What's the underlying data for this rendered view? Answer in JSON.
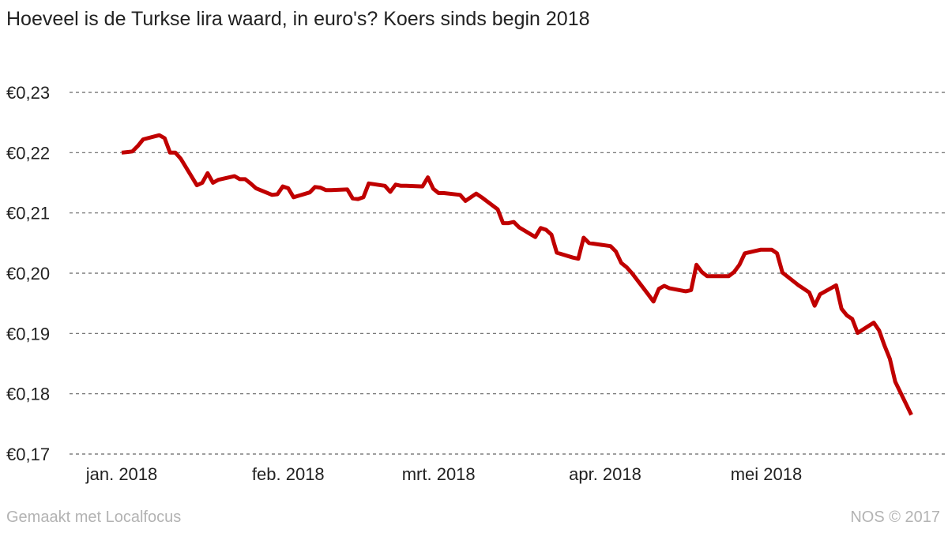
{
  "title": "Hoeveel is de Turkse lira waard, in euro's? Koers sinds begin 2018",
  "footer": {
    "left": "Gemaakt met Localfocus",
    "right": "NOS © 2017"
  },
  "chart_data": {
    "type": "line",
    "title": "Hoeveel is de Turkse lira waard, in euro's? Koers sinds begin 2018",
    "xlabel": "",
    "ylabel": "",
    "ylim": [
      0.17,
      0.23
    ],
    "xlim": [
      "2017-12-28",
      "2018-05-31"
    ],
    "grid": true,
    "line_color": "#c00000",
    "y_ticks": [
      {
        "value": 0.23,
        "label": "€0,23"
      },
      {
        "value": 0.22,
        "label": "€0,22"
      },
      {
        "value": 0.21,
        "label": "€0,21"
      },
      {
        "value": 0.2,
        "label": "€0,20"
      },
      {
        "value": 0.19,
        "label": "€0,19"
      },
      {
        "value": 0.18,
        "label": "€0,18"
      },
      {
        "value": 0.17,
        "label": "€0,17"
      }
    ],
    "x_ticks": [
      {
        "date": "2018-01-01",
        "label": "jan. 2018"
      },
      {
        "date": "2018-02-01",
        "label": "feb. 2018"
      },
      {
        "date": "2018-03-01",
        "label": "mrt. 2018"
      },
      {
        "date": "2018-04-01",
        "label": "apr. 2018"
      },
      {
        "date": "2018-05-01",
        "label": "mei 2018"
      }
    ],
    "series": [
      {
        "points": [
          [
            "2018-01-01",
            0.22
          ],
          [
            "2018-01-02",
            0.2201
          ],
          [
            "2018-01-03",
            0.2202
          ],
          [
            "2018-01-04",
            0.2211
          ],
          [
            "2018-01-05",
            0.2222
          ],
          [
            "2018-01-08",
            0.2229
          ],
          [
            "2018-01-09",
            0.2224
          ],
          [
            "2018-01-10",
            0.22
          ],
          [
            "2018-01-11",
            0.22
          ],
          [
            "2018-01-12",
            0.219
          ],
          [
            "2018-01-15",
            0.2146
          ],
          [
            "2018-01-16",
            0.215
          ],
          [
            "2018-01-17",
            0.2166
          ],
          [
            "2018-01-18",
            0.215
          ],
          [
            "2018-01-19",
            0.2155
          ],
          [
            "2018-01-22",
            0.2161
          ],
          [
            "2018-01-23",
            0.2156
          ],
          [
            "2018-01-24",
            0.2156
          ],
          [
            "2018-01-25",
            0.2149
          ],
          [
            "2018-01-26",
            0.2141
          ],
          [
            "2018-01-29",
            0.213
          ],
          [
            "2018-01-30",
            0.2131
          ],
          [
            "2018-01-31",
            0.2144
          ],
          [
            "2018-02-01",
            0.2141
          ],
          [
            "2018-02-02",
            0.2126
          ],
          [
            "2018-02-05",
            0.2134
          ],
          [
            "2018-02-06",
            0.2143
          ],
          [
            "2018-02-07",
            0.2142
          ],
          [
            "2018-02-08",
            0.2138
          ],
          [
            "2018-02-09",
            0.2138
          ],
          [
            "2018-02-12",
            0.2139
          ],
          [
            "2018-02-13",
            0.2124
          ],
          [
            "2018-02-14",
            0.2123
          ],
          [
            "2018-02-15",
            0.2126
          ],
          [
            "2018-02-16",
            0.2149
          ],
          [
            "2018-02-19",
            0.2145
          ],
          [
            "2018-02-20",
            0.2135
          ],
          [
            "2018-02-21",
            0.2147
          ],
          [
            "2018-02-22",
            0.2145
          ],
          [
            "2018-02-23",
            0.2145
          ],
          [
            "2018-02-26",
            0.2144
          ],
          [
            "2018-02-27",
            0.2159
          ],
          [
            "2018-02-28",
            0.214
          ],
          [
            "2018-03-01",
            0.2133
          ],
          [
            "2018-03-02",
            0.2133
          ],
          [
            "2018-03-05",
            0.213
          ],
          [
            "2018-03-06",
            0.212
          ],
          [
            "2018-03-07",
            0.2126
          ],
          [
            "2018-03-08",
            0.2132
          ],
          [
            "2018-03-09",
            0.2126
          ],
          [
            "2018-03-12",
            0.2106
          ],
          [
            "2018-03-13",
            0.2083
          ],
          [
            "2018-03-14",
            0.2083
          ],
          [
            "2018-03-15",
            0.2085
          ],
          [
            "2018-03-16",
            0.2076
          ],
          [
            "2018-03-19",
            0.206
          ],
          [
            "2018-03-20",
            0.2075
          ],
          [
            "2018-03-21",
            0.2072
          ],
          [
            "2018-03-22",
            0.2064
          ],
          [
            "2018-03-23",
            0.2034
          ],
          [
            "2018-03-26",
            0.2026
          ],
          [
            "2018-03-27",
            0.2024
          ],
          [
            "2018-03-28",
            0.2059
          ],
          [
            "2018-03-29",
            0.205
          ],
          [
            "2018-04-02",
            0.2045
          ],
          [
            "2018-04-03",
            0.2036
          ],
          [
            "2018-04-04",
            0.2017
          ],
          [
            "2018-04-05",
            0.201
          ],
          [
            "2018-04-06",
            0.2
          ],
          [
            "2018-04-09",
            0.1965
          ],
          [
            "2018-04-10",
            0.1953
          ],
          [
            "2018-04-11",
            0.1974
          ],
          [
            "2018-04-12",
            0.1979
          ],
          [
            "2018-04-13",
            0.1975
          ],
          [
            "2018-04-16",
            0.197
          ],
          [
            "2018-04-17",
            0.1972
          ],
          [
            "2018-04-18",
            0.2014
          ],
          [
            "2018-04-19",
            0.2002
          ],
          [
            "2018-04-20",
            0.1995
          ],
          [
            "2018-04-23",
            0.1995
          ],
          [
            "2018-04-24",
            0.1995
          ],
          [
            "2018-04-25",
            0.2002
          ],
          [
            "2018-04-26",
            0.2014
          ],
          [
            "2018-04-27",
            0.2033
          ],
          [
            "2018-04-30",
            0.2039
          ],
          [
            "2018-05-01",
            0.2039
          ],
          [
            "2018-05-02",
            0.2039
          ],
          [
            "2018-05-03",
            0.2033
          ],
          [
            "2018-05-04",
            0.2001
          ],
          [
            "2018-05-07",
            0.198
          ],
          [
            "2018-05-08",
            0.1974
          ],
          [
            "2018-05-09",
            0.1968
          ],
          [
            "2018-05-10",
            0.1946
          ],
          [
            "2018-05-11",
            0.1965
          ],
          [
            "2018-05-14",
            0.198
          ],
          [
            "2018-05-15",
            0.1941
          ],
          [
            "2018-05-16",
            0.193
          ],
          [
            "2018-05-17",
            0.1924
          ],
          [
            "2018-05-18",
            0.1901
          ],
          [
            "2018-05-21",
            0.1918
          ],
          [
            "2018-05-22",
            0.1905
          ],
          [
            "2018-05-23",
            0.188
          ],
          [
            "2018-05-24",
            0.1858
          ],
          [
            "2018-05-25",
            0.182
          ],
          [
            "2018-05-28",
            0.1765
          ]
        ]
      }
    ]
  }
}
